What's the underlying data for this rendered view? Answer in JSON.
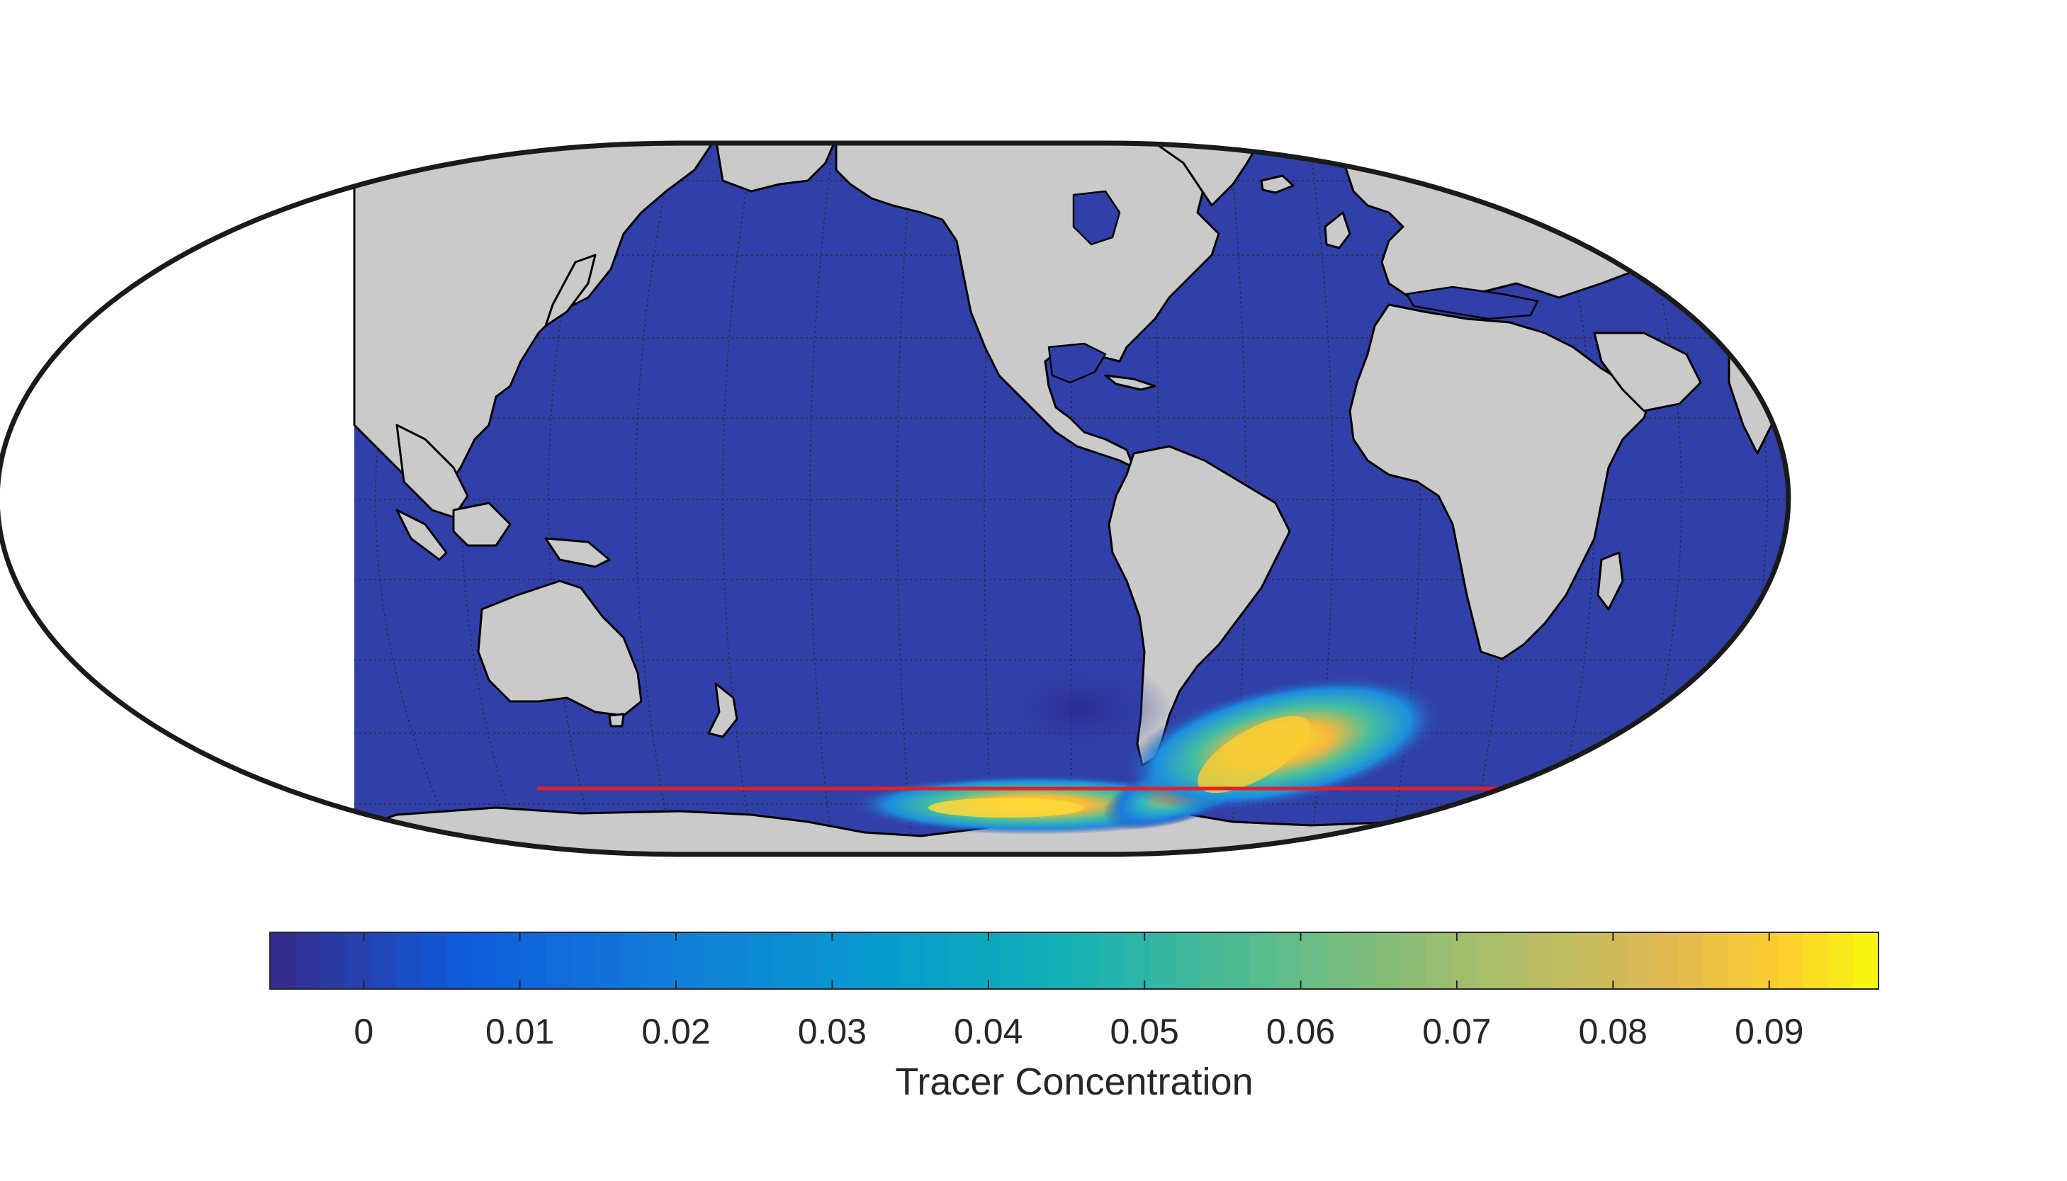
{
  "chart_data": {
    "type": "heatmap",
    "projection": "Robinson-like pseudocylindrical world map, centered on the Pacific/Americas",
    "title": "",
    "colormap": "parula",
    "colorbar": {
      "label": "Tracer Concentration",
      "range": [
        -0.006,
        0.097
      ],
      "ticks": [
        0,
        0.01,
        0.02,
        0.03,
        0.04,
        0.05,
        0.06,
        0.07,
        0.08,
        0.09
      ],
      "tick_labels": [
        "0",
        "0.01",
        "0.02",
        "0.03",
        "0.04",
        "0.05",
        "0.06",
        "0.07",
        "0.08",
        "0.09"
      ],
      "placement": "bottom"
    },
    "background_ocean_value": 0,
    "land_color": "#cacaca",
    "coastline_color": "#000000",
    "graticule": "on (dotted)",
    "reference_line": {
      "latitude": -55,
      "color": "#e0202a",
      "description": "zonal line across Southern Ocean"
    },
    "features": [
      {
        "name": "tracer plume - Drake Passage / Scotia Sea",
        "peak_value": 0.095
      },
      {
        "name": "tracer plume - South Atlantic (east of Argentina)",
        "peak_value": 0.09
      },
      {
        "name": "slight negative anomaly - SE Pacific west of Chile",
        "value": -0.005
      }
    ]
  },
  "colors": {
    "ocean": "#3140a8",
    "land": "#cacaca",
    "frame": "#1a1a1a",
    "reference_line": "#e0202a"
  }
}
